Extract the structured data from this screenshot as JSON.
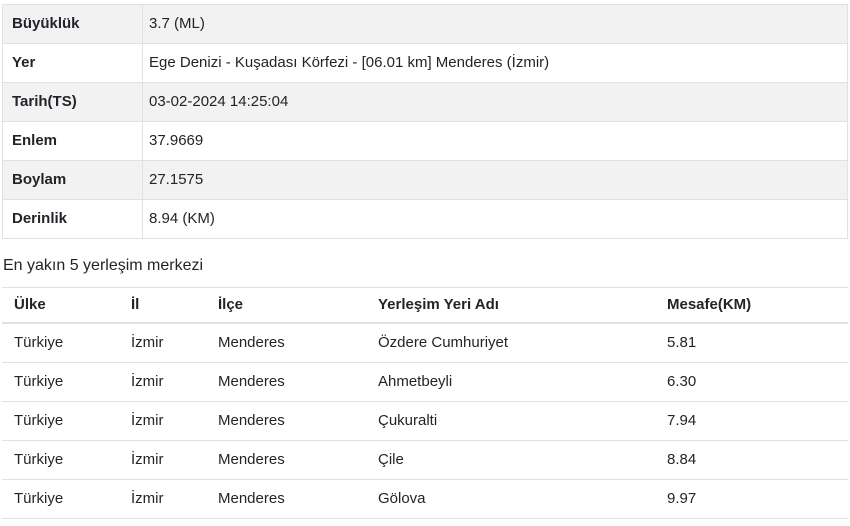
{
  "detail_table": {
    "rows": [
      {
        "label": "Büyüklük",
        "value": "3.7 (ML)"
      },
      {
        "label": "Yer",
        "value": "Ege Denizi - Kuşadası Körfezi - [06.01 km] Menderes (İzmir)"
      },
      {
        "label": "Tarih(TS)",
        "value": "03-02-2024 14:25:04"
      },
      {
        "label": "Enlem",
        "value": "37.9669"
      },
      {
        "label": "Boylam",
        "value": "27.1575"
      },
      {
        "label": "Derinlik",
        "value": "8.94 (KM)"
      }
    ]
  },
  "nearby_section": {
    "heading": "En yakın 5 yerleşim merkezi",
    "columns": [
      "Ülke",
      "İl",
      "İlçe",
      "Yerleşim Yeri Adı",
      "Mesafe(KM)"
    ],
    "rows": [
      [
        "Türkiye",
        "İzmir",
        "Menderes",
        "Özdere Cumhuriyet",
        "5.81"
      ],
      [
        "Türkiye",
        "İzmir",
        "Menderes",
        "Ahmetbeyli",
        "6.30"
      ],
      [
        "Türkiye",
        "İzmir",
        "Menderes",
        "Çukuralti",
        "7.94"
      ],
      [
        "Türkiye",
        "İzmir",
        "Menderes",
        "Çile",
        "8.84"
      ],
      [
        "Türkiye",
        "İzmir",
        "Menderes",
        "Gölova",
        "9.97"
      ]
    ]
  },
  "colors": {
    "stripe": "#f2f2f2",
    "border": "#dee2e6",
    "text": "#212529"
  }
}
